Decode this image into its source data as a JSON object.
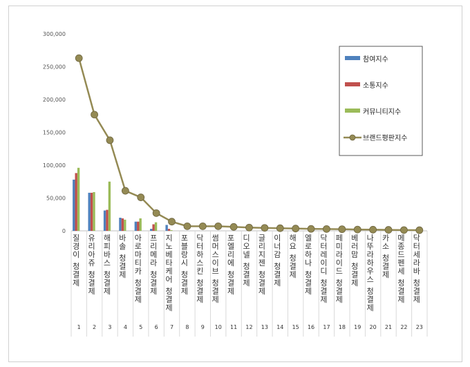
{
  "chart_data": {
    "type": "bar",
    "ylim": [
      0,
      300000
    ],
    "yticks": [
      "0",
      "50,000",
      "100,000",
      "150,000",
      "200,000",
      "250,000",
      "300,000"
    ],
    "ytick_values": [
      0,
      50000,
      100000,
      150000,
      200000,
      250000,
      300000
    ],
    "indices": [
      "1",
      "2",
      "3",
      "4",
      "5",
      "6",
      "7",
      "8",
      "9",
      "10",
      "11",
      "12",
      "13",
      "14",
      "15",
      "16",
      "17",
      "18",
      "19",
      "20",
      "21",
      "22",
      "23"
    ],
    "categories": [
      "질경이 청결제",
      "유리아쥬 청결제",
      "해피바스 청결제",
      "바솔 청결제",
      "아로마티카 청결제",
      "프리메라 청결제",
      "지노베타케어 청결제",
      "포블랑시 청결제",
      "닥터하스킨 청결제",
      "썸머스이브 청결제",
      "포엘리에 청결제",
      "디오넬 청결제",
      "글리지젠 청결제",
      "이너감 청결제",
      "해요 청결제",
      "엘로하나 청결제",
      "닥터레이디 청결제",
      "페미라이드 청결제",
      "베러맘 청결제",
      "나뚜라하우스 청결제",
      "카소 청결제",
      "메종드펜세 청결제",
      "닥터세라바 청결제"
    ],
    "legend_position": "top-right",
    "series": [
      {
        "name": "참여지수",
        "kind": "bar",
        "color": "#4f81bd",
        "values": [
          78000,
          58000,
          31000,
          20000,
          14000,
          3000,
          9000,
          0,
          0,
          0,
          0,
          0,
          0,
          0,
          0,
          0,
          0,
          0,
          0,
          0,
          0,
          0,
          0
        ]
      },
      {
        "name": "소통지수",
        "kind": "bar",
        "color": "#c0504d",
        "values": [
          88000,
          58000,
          32000,
          19000,
          14000,
          10000,
          3000,
          0,
          0,
          0,
          0,
          0,
          0,
          0,
          0,
          0,
          0,
          0,
          0,
          0,
          0,
          0,
          0
        ]
      },
      {
        "name": "커뮤니티지수",
        "kind": "bar",
        "color": "#9bbb59",
        "values": [
          96000,
          59000,
          75000,
          17000,
          19000,
          13000,
          1000,
          0,
          0,
          0,
          0,
          0,
          0,
          0,
          0,
          0,
          0,
          0,
          0,
          0,
          0,
          0,
          0
        ]
      },
      {
        "name": "브랜드평판지수",
        "kind": "line",
        "color": "#948a54",
        "values": [
          263000,
          177000,
          138000,
          61000,
          51000,
          27000,
          14000,
          7000,
          7000,
          7000,
          6000,
          5000,
          4500,
          4000,
          3500,
          3000,
          2800,
          2500,
          2000,
          1800,
          1500,
          1200,
          1000
        ]
      }
    ]
  }
}
